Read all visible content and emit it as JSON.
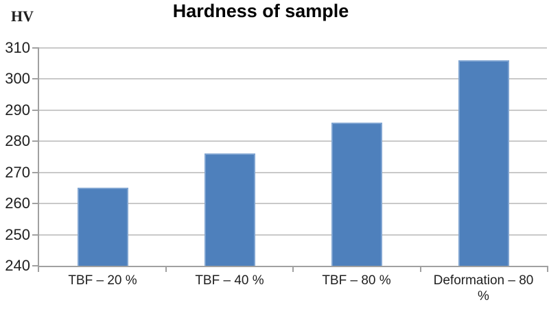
{
  "chart_data": {
    "type": "bar",
    "title": "Hardness of sample",
    "ylabel": "HV",
    "xlabel": "",
    "categories": [
      "TBF – 20 %",
      "TBF – 40 %",
      "TBF – 80 %",
      "Deformation – 80 %"
    ],
    "values": [
      265,
      276,
      286,
      306
    ],
    "ylim": [
      240,
      310
    ],
    "yticks": [
      240,
      250,
      260,
      270,
      280,
      290,
      300,
      310
    ],
    "grid": "horizontal",
    "legend_position": "none",
    "colors": {
      "bar_fill": "#4E80BC",
      "bar_border": "#7FA4D1",
      "gridline": "#C9C9C9",
      "axis": "#A0A0A0",
      "text": "#1F1F1F",
      "title_text": "#000000",
      "background": "#FFFFFF"
    }
  }
}
